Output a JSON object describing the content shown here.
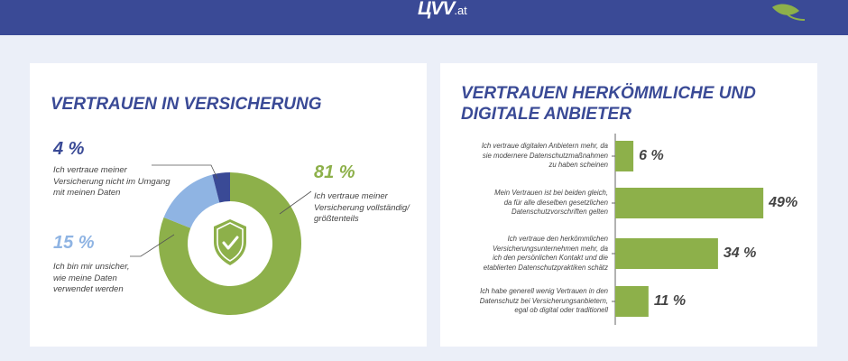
{
  "header": {
    "brand": "ЦVV",
    "tld": ".at",
    "bar_color": "#3a4a96"
  },
  "colors": {
    "green": "#8db04a",
    "light_blue": "#8fb4e3",
    "dark_blue": "#3a4a96",
    "text": "#444444"
  },
  "chart_data": [
    {
      "type": "pie",
      "title": "VERTRAUEN IN VERSICHERUNG",
      "slices": [
        {
          "value": 81,
          "label": "81 %",
          "description": "Ich vertraue meiner Versicherung vollständig/ größtenteils",
          "color": "#8db04a"
        },
        {
          "value": 15,
          "label": "15 %",
          "description": "Ich bin mir unsicher, wie meine Daten verwendet werden",
          "color": "#8fb4e3"
        },
        {
          "value": 4,
          "label": "4 %",
          "description": "Ich vertraue meiner Versicherung nicht im Umgang mit meinen Daten",
          "color": "#3a4a96"
        }
      ],
      "center_icon": "shield-check-icon"
    },
    {
      "type": "bar",
      "orientation": "horizontal",
      "title_lines": [
        "VERTRAUEN HERKÖMMLICHE UND",
        "DIGITALE ANBIETER"
      ],
      "categories": [
        "Ich vertraue digitalen Anbietern mehr, da sie modernere Datenschutzmaßnahmen zu haben scheinen",
        "Mein Vertrauen ist bei beiden gleich, da für alle dieselben gesetzlichen Datenschutzvorschriften gelten",
        "Ich vertraue den herkömmlichen Versicherungsunternehmen mehr, da ich den persönlichen Kontakt und die etablierten Datenschutzpraktiken schätz",
        "Ich habe generell wenig Vertrauen in den Datenschutz bei Versicherungsanbietern, egal ob digital oder traditionell"
      ],
      "category_lines": [
        [
          "Ich vertraue digitalen Anbietern mehr, da",
          "sie modernere Datenschutzmaßnahmen",
          "zu haben scheinen"
        ],
        [
          "Mein Vertrauen ist bei beiden gleich,",
          "da für alle dieselben gesetzlichen",
          "Datenschutzvorschriften gelten"
        ],
        [
          "Ich vertraue den herkömmlichen",
          "Versicherungsunternehmen mehr, da",
          "ich den persönlichen Kontakt und die",
          "etablierten Datenschutzpraktiken schätz"
        ],
        [
          "Ich habe generell wenig Vertrauen in den",
          "Datenschutz bei Versicherungsanbietern,",
          "egal ob digital oder traditionell"
        ]
      ],
      "values": [
        6,
        49,
        34,
        11
      ],
      "value_labels": [
        "6 %",
        "49%",
        "34 %",
        "11 %"
      ],
      "color": "#8db04a"
    }
  ]
}
